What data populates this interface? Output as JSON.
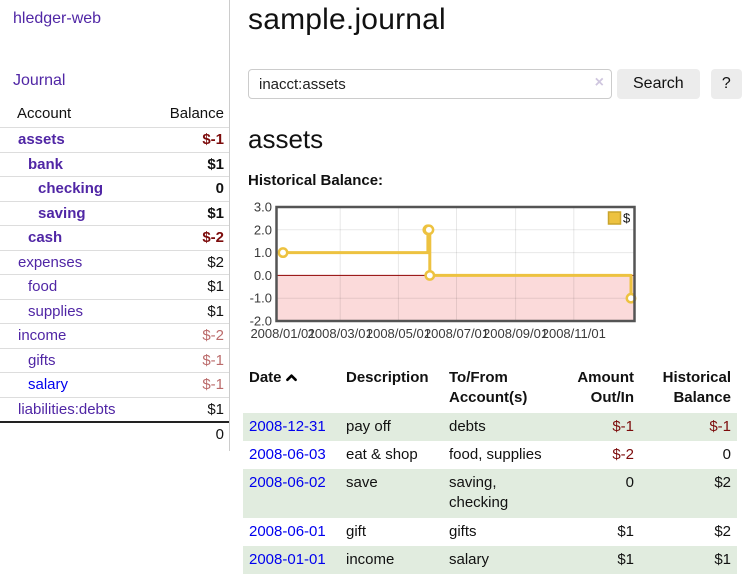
{
  "app": {
    "title": "hledger-web"
  },
  "sidebar": {
    "nav_journal": "Journal",
    "accounts_table": {
      "headers": {
        "account": "Account",
        "balance": "Balance"
      },
      "rows": [
        {
          "label": "assets",
          "balance": "$-1",
          "depth": 1,
          "in_filter": true,
          "balance_tone": "negative",
          "link_style": "visited"
        },
        {
          "label": "bank",
          "balance": "$1",
          "depth": 2,
          "in_filter": true,
          "balance_tone": "normal",
          "link_style": "visited"
        },
        {
          "label": "checking",
          "balance": "0",
          "depth": 3,
          "in_filter": true,
          "balance_tone": "normal",
          "link_style": "visited"
        },
        {
          "label": "saving",
          "balance": "$1",
          "depth": 3,
          "in_filter": true,
          "balance_tone": "normal",
          "link_style": "visited"
        },
        {
          "label": "cash",
          "balance": "$-2",
          "depth": 2,
          "in_filter": true,
          "balance_tone": "negative",
          "link_style": "visited"
        },
        {
          "label": "expenses",
          "balance": "$2",
          "depth": 1,
          "in_filter": false,
          "balance_tone": "normal",
          "link_style": "visited"
        },
        {
          "label": "food",
          "balance": "$1",
          "depth": 2,
          "in_filter": false,
          "balance_tone": "normal",
          "link_style": "visited"
        },
        {
          "label": "supplies",
          "balance": "$1",
          "depth": 2,
          "in_filter": false,
          "balance_tone": "normal",
          "link_style": "visited"
        },
        {
          "label": "income",
          "balance": "$-2",
          "depth": 1,
          "in_filter": false,
          "balance_tone": "negative-soft",
          "link_style": "visited"
        },
        {
          "label": "gifts",
          "balance": "$-1",
          "depth": 2,
          "in_filter": false,
          "balance_tone": "negative-soft",
          "link_style": "visited"
        },
        {
          "label": "salary",
          "balance": "$-1",
          "depth": 2,
          "in_filter": false,
          "balance_tone": "negative-soft",
          "link_style": "unvisited"
        },
        {
          "label": "liabilities:debts",
          "balance": "$1",
          "depth": 1,
          "in_filter": false,
          "balance_tone": "normal",
          "link_style": "visited"
        }
      ],
      "total": "0"
    }
  },
  "main": {
    "title": "sample.journal",
    "search": {
      "value": "inacct:assets",
      "clear_label": "×",
      "button_label": "Search",
      "help_label": "?"
    },
    "account_heading": "assets",
    "chart_label": "Historical Balance:",
    "chart_data": {
      "type": "line",
      "step": true,
      "series": [
        {
          "name": "$",
          "color": "#edc240",
          "points": [
            {
              "date": "2008-01-01",
              "value": 1
            },
            {
              "date": "2008-06-01",
              "value": 2
            },
            {
              "date": "2008-06-02",
              "value": 2
            },
            {
              "date": "2008-06-03",
              "value": 0
            },
            {
              "date": "2008-12-31",
              "value": -1
            }
          ]
        }
      ],
      "xlim": [
        "2008-01-01",
        "2008-12-31"
      ],
      "ylim": [
        -2,
        3
      ],
      "y_ticks": [
        3.0,
        2.0,
        1.0,
        0.0,
        -1.0,
        -2.0
      ],
      "x_ticks": [
        {
          "date": "2008-01-01",
          "label": "2008/01/01"
        },
        {
          "date": "2008-03-01",
          "label": "2008/03/01"
        },
        {
          "date": "2008-05-01",
          "label": "2008/05/01"
        },
        {
          "date": "2008-07-01",
          "label": "2008/07/01"
        },
        {
          "date": "2008-09-01",
          "label": "2008/09/01"
        },
        {
          "date": "2008-11-01",
          "label": "2008/11/01"
        }
      ],
      "legend": {
        "label": "$",
        "position": "top-right"
      },
      "grid": true,
      "negative_region_color": "#fbdada",
      "zero_line_color": "#8e0000"
    },
    "register_table": {
      "headers": [
        {
          "label": "Date",
          "align": "left",
          "sort_icon": "chevron-up-icon"
        },
        {
          "label": "Description",
          "align": "left"
        },
        {
          "label": "To/From Account(s)",
          "align": "left"
        },
        {
          "label": "Amount Out/In",
          "align": "right"
        },
        {
          "label": "Historical Balance",
          "align": "right"
        }
      ],
      "rows": [
        {
          "date": "2008-12-31",
          "description": "pay off",
          "accounts": "debts",
          "amount": "$-1",
          "amount_negative": true,
          "balance": "$-1",
          "balance_negative": true
        },
        {
          "date": "2008-06-03",
          "description": "eat & shop",
          "accounts": "food, supplies",
          "amount": "$-2",
          "amount_negative": true,
          "balance": "0",
          "balance_negative": false
        },
        {
          "date": "2008-06-02",
          "description": "save",
          "accounts": "saving, checking",
          "amount": "0",
          "amount_negative": false,
          "balance": "$2",
          "balance_negative": false
        },
        {
          "date": "2008-06-01",
          "description": "gift",
          "accounts": "gifts",
          "amount": "$1",
          "amount_negative": false,
          "balance": "$2",
          "balance_negative": false
        },
        {
          "date": "2008-01-01",
          "description": "income",
          "accounts": "salary",
          "amount": "$1",
          "amount_negative": false,
          "balance": "$1",
          "balance_negative": false
        }
      ]
    }
  },
  "colors": {
    "link_purple": "#5026a5",
    "link_blue": "#0000ee",
    "negative_strong": "#7c0b0b",
    "negative_soft": "#bb6b6b",
    "row_stripe_green": "#e1ecdf",
    "chart_line": "#edc240",
    "chart_negative_region": "#fbdada",
    "chart_zero_line": "#8e0000"
  }
}
